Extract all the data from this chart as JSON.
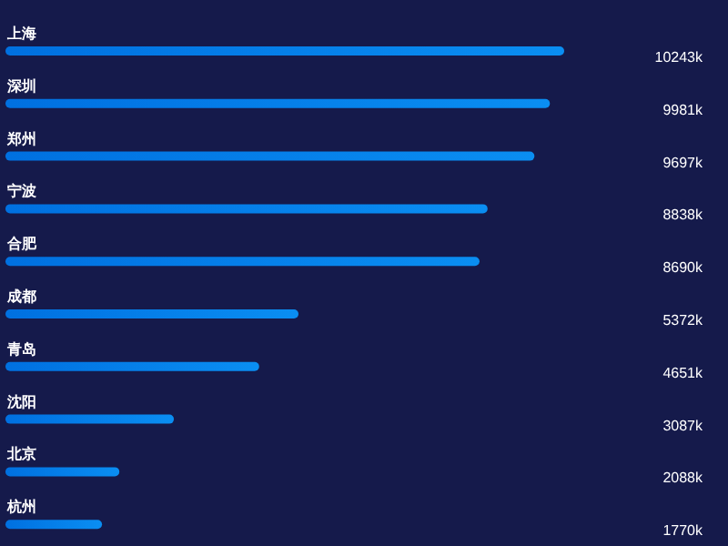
{
  "chart_data": {
    "type": "bar",
    "orientation": "horizontal",
    "color": "#0a8ef2",
    "categories": [
      "上海",
      "深圳",
      "郑州",
      "宁波",
      "合肥",
      "成都",
      "青岛",
      "沈阳",
      "北京",
      "杭州"
    ],
    "values": [
      10243,
      9981,
      9697,
      8838,
      8690,
      5372,
      4651,
      3087,
      2088,
      1770
    ],
    "value_labels": [
      "10243k",
      "9981k",
      "9697k",
      "8838k",
      "8690k",
      "5372k",
      "4651k",
      "3087k",
      "2088k",
      "1770k"
    ]
  }
}
